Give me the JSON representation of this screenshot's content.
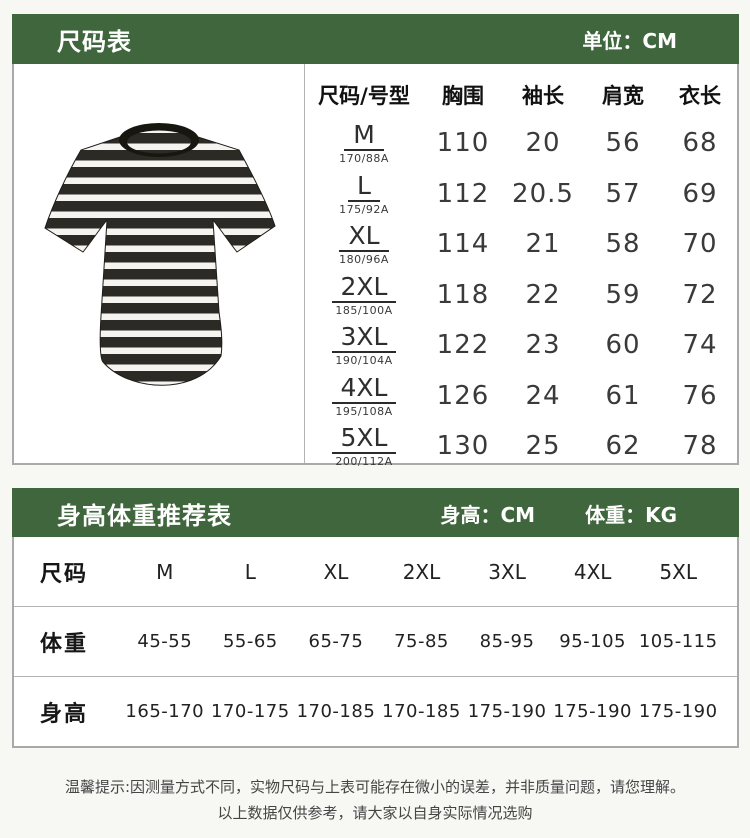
{
  "colors": {
    "accent_green": "#40663d",
    "stripe_dark": "#2b2a25",
    "stripe_light": "#f5f4f0",
    "border_gray": "#a9a9a9"
  },
  "size_chart": {
    "title": "尺码表",
    "unit_label": "单位：CM",
    "product_image": "black-white-striped-tshirt-photo",
    "columns": [
      "尺码/号型",
      "胸围",
      "袖长",
      "肩宽",
      "衣长"
    ],
    "rows": [
      {
        "size": "M",
        "model": "170/88A",
        "chest": "110",
        "sleeve": "20",
        "shoulder": "56",
        "length": "68"
      },
      {
        "size": "L",
        "model": "175/92A",
        "chest": "112",
        "sleeve": "20.5",
        "shoulder": "57",
        "length": "69"
      },
      {
        "size": "XL",
        "model": "180/96A",
        "chest": "114",
        "sleeve": "21",
        "shoulder": "58",
        "length": "70"
      },
      {
        "size": "2XL",
        "model": "185/100A",
        "chest": "118",
        "sleeve": "22",
        "shoulder": "59",
        "length": "72"
      },
      {
        "size": "3XL",
        "model": "190/104A",
        "chest": "122",
        "sleeve": "23",
        "shoulder": "60",
        "length": "74"
      },
      {
        "size": "4XL",
        "model": "195/108A",
        "chest": "126",
        "sleeve": "24",
        "shoulder": "61",
        "length": "76"
      },
      {
        "size": "5XL",
        "model": "200/112A",
        "chest": "130",
        "sleeve": "25",
        "shoulder": "62",
        "length": "78"
      }
    ]
  },
  "height_weight_chart": {
    "title": "身高体重推荐表",
    "height_unit_label": "身高：CM",
    "weight_unit_label": "体重：KG",
    "size_row_label": "尺码",
    "weight_row_label": "体重",
    "height_row_label": "身高",
    "sizes": [
      "M",
      "L",
      "XL",
      "2XL",
      "3XL",
      "4XL",
      "5XL"
    ],
    "weights": [
      "45-55",
      "55-65",
      "65-75",
      "75-85",
      "85-95",
      "95-105",
      "105-115"
    ],
    "heights": [
      "165-170",
      "170-175",
      "170-185",
      "170-185",
      "175-190",
      "175-190",
      "175-190"
    ]
  },
  "footer": {
    "line1": "温馨提示:因测量方式不同，实物尺码与上表可能存在微小的误差，并非质量问题，请您理解。",
    "line2": "以上数据仅供参考，请大家以自身实际情况选购"
  }
}
